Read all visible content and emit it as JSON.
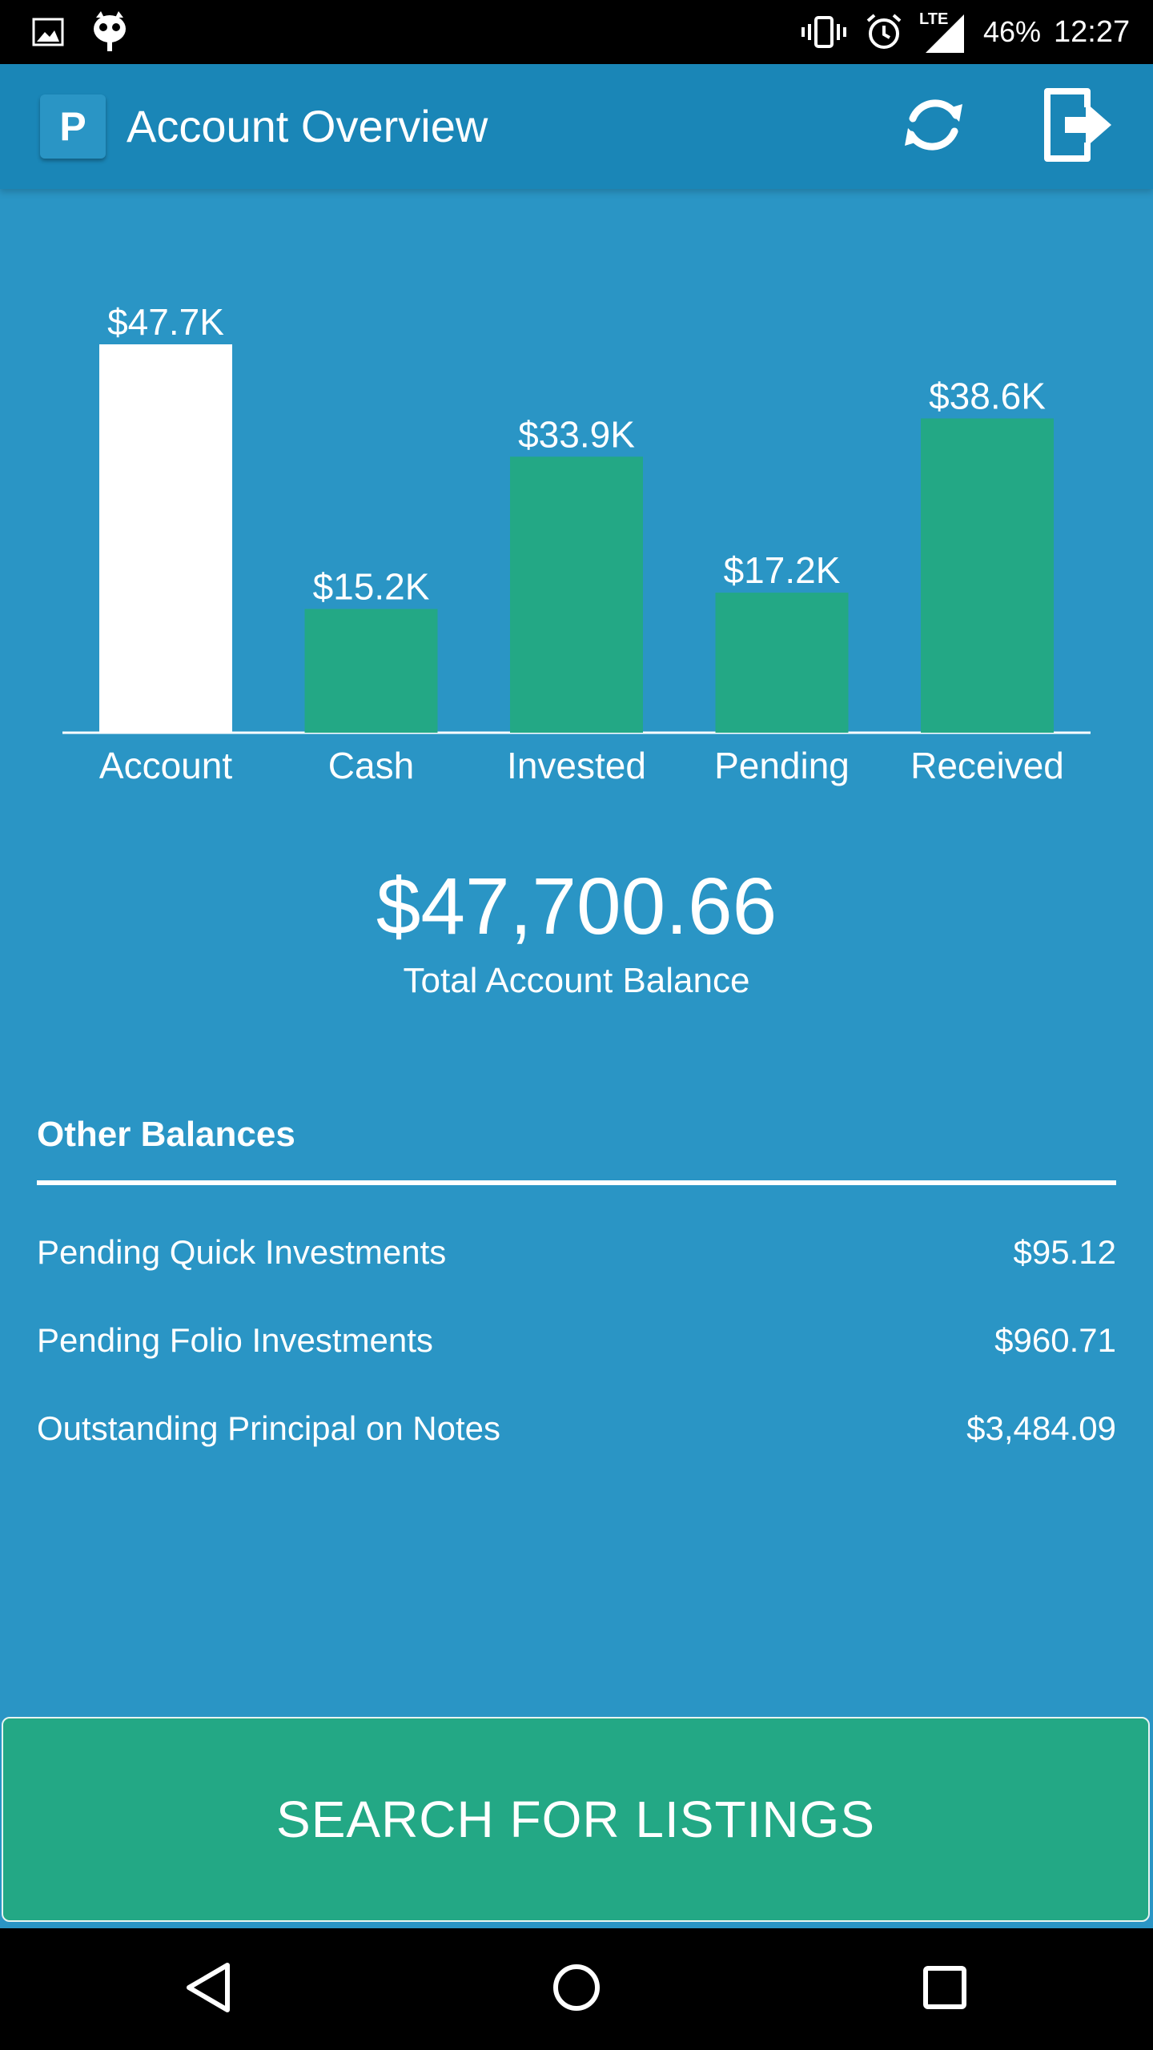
{
  "status_bar": {
    "battery": "46%",
    "time": "12:27",
    "network": "LTE"
  },
  "app_bar": {
    "logo_letter": "P",
    "title": "Account Overview"
  },
  "chart_data": {
    "type": "bar",
    "categories": [
      "Account",
      "Cash",
      "Invested",
      "Pending",
      "Received"
    ],
    "values": [
      47.7,
      15.2,
      33.9,
      17.2,
      38.6
    ],
    "value_labels": [
      "$47.7K",
      "$15.2K",
      "$33.9K",
      "$17.2K",
      "$38.6K"
    ],
    "title": "",
    "xlabel": "",
    "ylabel": "",
    "ylim": [
      0,
      47.7
    ],
    "grid": false,
    "colors": [
      "#ffffff",
      "#23a885",
      "#23a885",
      "#23a885",
      "#23a885"
    ]
  },
  "total": {
    "amount": "$47,700.66",
    "label": "Total Account Balance"
  },
  "other_balances": {
    "title": "Other Balances",
    "rows": [
      {
        "label": "Pending Quick Investments",
        "value": "$95.12"
      },
      {
        "label": "Pending Folio Investments",
        "value": "$960.71"
      },
      {
        "label": "Outstanding Principal on Notes",
        "value": "$3,484.09"
      }
    ]
  },
  "search_button": {
    "label": "SEARCH FOR LISTINGS"
  },
  "colors": {
    "background": "#2a95c5",
    "app_bar": "#1a86b7",
    "bar_green": "#23a885",
    "bar_highlight": "#ffffff"
  }
}
